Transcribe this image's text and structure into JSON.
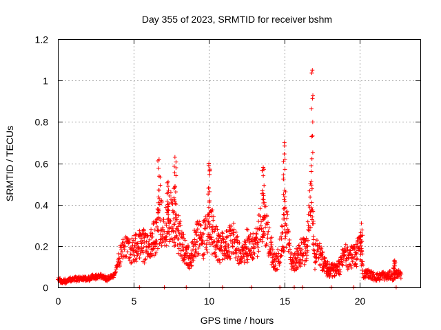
{
  "chart_data": {
    "type": "scatter",
    "title": "Day 355 of 2023, SRMTID for receiver bshm",
    "xlabel": "GPS time / hours",
    "ylabel": "SRMTID / TECUs",
    "xlim": [
      0,
      24
    ],
    "ylim": [
      0,
      1.2
    ],
    "grid": true,
    "marker": "+",
    "color": "#ff0000",
    "x_ticks": [
      {
        "value": 0,
        "label": "0"
      },
      {
        "value": 5,
        "label": "5"
      },
      {
        "value": 10,
        "label": "10"
      },
      {
        "value": 15,
        "label": "15"
      },
      {
        "value": 20,
        "label": "20"
      }
    ],
    "y_ticks": [
      {
        "value": 0,
        "label": "0"
      },
      {
        "value": 0.2,
        "label": "0.2"
      },
      {
        "value": 0.4,
        "label": "0.4"
      },
      {
        "value": 0.6,
        "label": "0.6"
      },
      {
        "value": 0.8,
        "label": "0.8"
      },
      {
        "value": 1,
        "label": "1"
      },
      {
        "value": 1.2,
        "label": "1.2"
      }
    ],
    "series": [
      {
        "name": "SRMTID",
        "x": [
          0.0,
          0.25,
          0.5,
          0.75,
          1.0,
          1.25,
          1.5,
          1.75,
          2.0,
          2.25,
          2.5,
          2.75,
          3.0,
          3.25,
          3.5,
          3.75,
          4.0,
          4.25,
          4.5,
          4.75,
          5.0,
          5.25,
          5.5,
          5.75,
          6.0,
          6.25,
          6.5,
          6.75,
          7.0,
          7.25,
          7.5,
          7.75,
          8.0,
          8.25,
          8.5,
          8.75,
          9.0,
          9.25,
          9.5,
          9.75,
          10.0,
          10.25,
          10.5,
          10.75,
          11.0,
          11.25,
          11.5,
          11.75,
          12.0,
          12.25,
          12.5,
          12.75,
          13.0,
          13.25,
          13.5,
          13.75,
          14.0,
          14.25,
          14.5,
          14.75,
          15.0,
          15.25,
          15.5,
          15.75,
          16.0,
          16.25,
          16.5,
          16.75,
          17.0,
          17.25,
          17.5,
          17.75,
          18.0,
          18.25,
          18.5,
          18.75,
          19.0,
          19.25,
          19.5,
          19.75,
          20.0,
          20.25,
          20.5,
          20.75,
          21.0,
          21.25,
          21.5,
          21.75,
          22.0,
          22.25,
          22.5,
          22.75
        ],
        "y": [
          0.04,
          0.03,
          0.03,
          0.035,
          0.04,
          0.04,
          0.045,
          0.04,
          0.04,
          0.05,
          0.05,
          0.055,
          0.05,
          0.04,
          0.05,
          0.06,
          0.13,
          0.18,
          0.2,
          0.17,
          0.19,
          0.2,
          0.21,
          0.2,
          0.19,
          0.22,
          0.25,
          0.33,
          0.26,
          0.3,
          0.36,
          0.31,
          0.27,
          0.2,
          0.17,
          0.13,
          0.2,
          0.24,
          0.23,
          0.25,
          0.29,
          0.27,
          0.22,
          0.18,
          0.22,
          0.19,
          0.26,
          0.2,
          0.16,
          0.15,
          0.2,
          0.22,
          0.2,
          0.23,
          0.34,
          0.3,
          0.22,
          0.14,
          0.12,
          0.2,
          0.32,
          0.26,
          0.1,
          0.14,
          0.16,
          0.18,
          0.2,
          0.42,
          0.14,
          0.19,
          0.13,
          0.1,
          0.08,
          0.09,
          0.08,
          0.12,
          0.16,
          0.14,
          0.15,
          0.16,
          0.22,
          0.06,
          0.07,
          0.06,
          0.05,
          0.05,
          0.06,
          0.05,
          0.06,
          0.05,
          0.07,
          0.05
        ],
        "peaks": [
          {
            "x": 6.7,
            "y": 0.62
          },
          {
            "x": 7.3,
            "y": 0.51
          },
          {
            "x": 7.75,
            "y": 0.63
          },
          {
            "x": 10.0,
            "y": 0.6
          },
          {
            "x": 13.6,
            "y": 0.58
          },
          {
            "x": 15.0,
            "y": 0.7
          },
          {
            "x": 16.85,
            "y": 1.05
          },
          {
            "x": 20.1,
            "y": 0.31
          },
          {
            "x": 22.3,
            "y": 0.13
          }
        ]
      }
    ]
  }
}
